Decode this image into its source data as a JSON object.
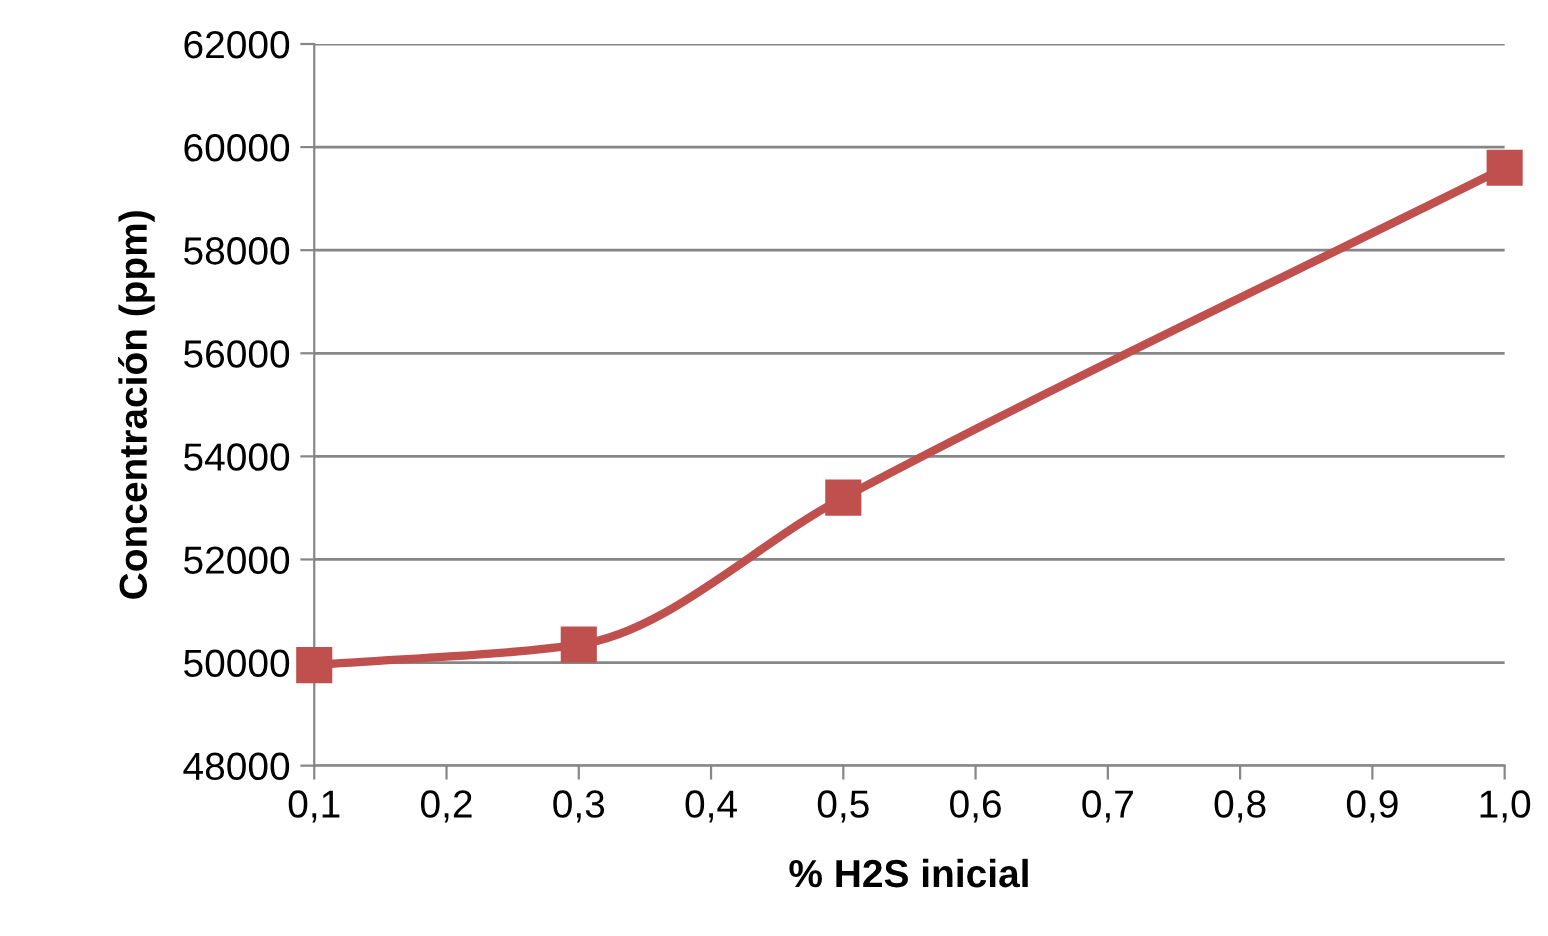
{
  "chart_data": {
    "type": "line",
    "xlabel": "% H2S inicial",
    "ylabel": "Concentración (ppm)",
    "x": [
      0.1,
      0.3,
      0.5,
      1.0
    ],
    "series": [
      {
        "color": "#c0504d",
        "values": [
          49950,
          50350,
          53200,
          59600
        ]
      }
    ],
    "xlim": [
      0.1,
      1.0
    ],
    "xticks": [
      {
        "value": 0.1,
        "label": "0,1"
      },
      {
        "value": 0.2,
        "label": "0,2"
      },
      {
        "value": 0.3,
        "label": "0,3"
      },
      {
        "value": 0.4,
        "label": "0,4"
      },
      {
        "value": 0.5,
        "label": "0,5"
      },
      {
        "value": 0.6,
        "label": "0,6"
      },
      {
        "value": 0.7,
        "label": "0,7"
      },
      {
        "value": 0.8,
        "label": "0,8"
      },
      {
        "value": 0.9,
        "label": "0,9"
      },
      {
        "value": 1.0,
        "label": "1,0"
      }
    ],
    "ylim": [
      48000,
      62000
    ],
    "yticks": [
      48000,
      50000,
      52000,
      54000,
      56000,
      58000,
      60000,
      62000
    ],
    "grid": "y",
    "marker": "square",
    "line_style": "solid",
    "legend": false
  }
}
